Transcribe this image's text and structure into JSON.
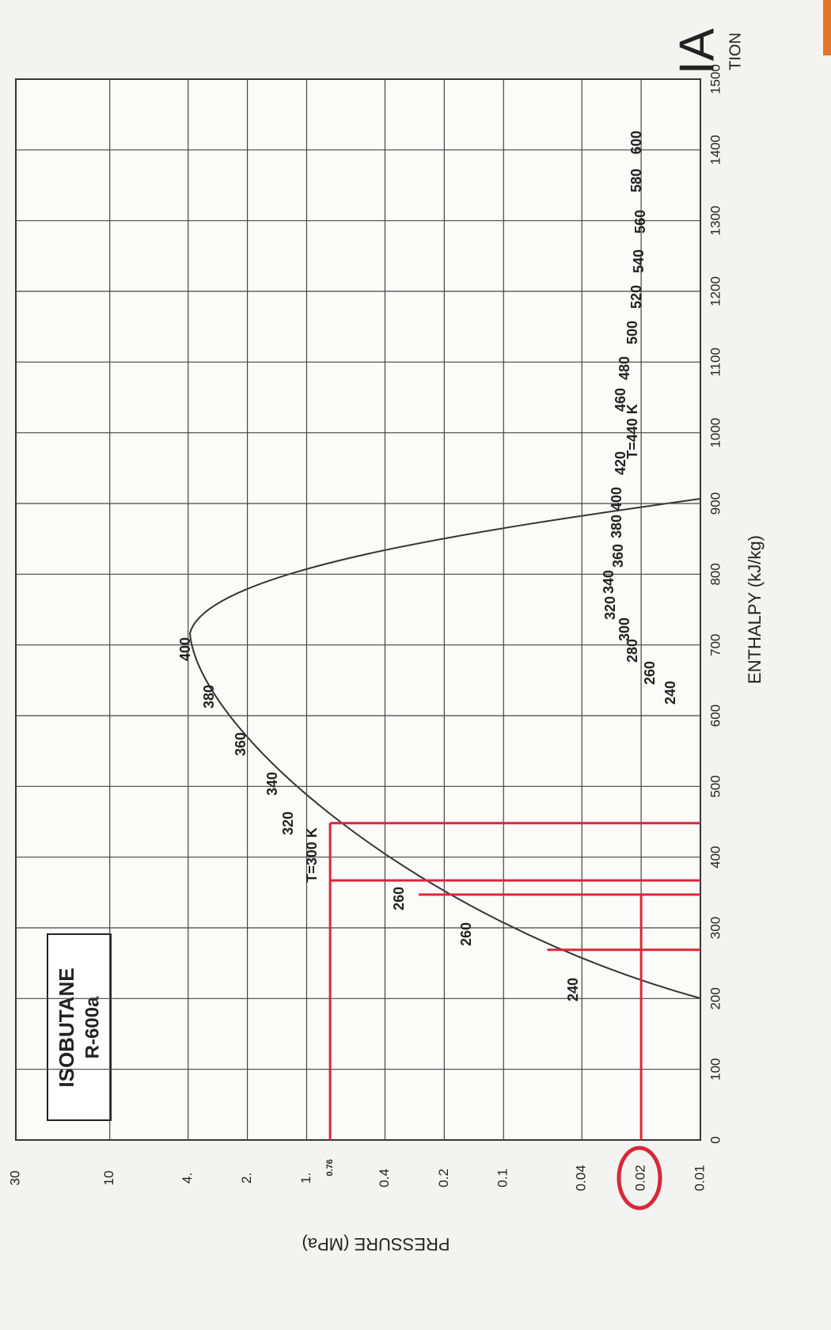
{
  "chart_data": {
    "type": "line",
    "title": "ISOBUTANE",
    "subtitle": "R-600a",
    "x_label": "ENTHALPY (kJ/kg)",
    "y_label": "PRESSURE (MPa)",
    "xlim": [
      0,
      1500
    ],
    "xticks": [
      0,
      100,
      200,
      300,
      400,
      500,
      600,
      700,
      800,
      900,
      1000,
      1100,
      1200,
      1300,
      1400,
      1500
    ],
    "ylim": [
      0.01,
      30
    ],
    "log_y": true,
    "yticks": [
      30,
      10,
      {
        "value": 4,
        "label": "4."
      },
      {
        "value": 2,
        "label": "2."
      },
      {
        "value": 1,
        "label": "1."
      },
      0.4,
      0.2,
      0.1,
      0.04,
      0.02,
      0.01
    ],
    "grid": true,
    "annotated_pressure": 0.76,
    "series": [
      {
        "color": "#d8283a",
        "x": [
          0,
          448
        ],
        "values": [
          0.76,
          0.76
        ]
      },
      {
        "color": "#d8283a",
        "x": [
          448,
          448
        ],
        "values": [
          0.76,
          0.01
        ]
      },
      {
        "color": "#d8283a",
        "x": [
          367,
          367
        ],
        "values": [
          0.76,
          0.01
        ]
      },
      {
        "color": "#d8283a",
        "x": [
          347,
          347
        ],
        "values": [
          0.27,
          0.01
        ]
      },
      {
        "color": "#d8283a",
        "x": [
          269,
          269
        ],
        "values": [
          0.06,
          0.01
        ]
      },
      {
        "color": "#d8283a",
        "x": [
          0,
          347
        ],
        "values": [
          0.02,
          0.02
        ]
      }
    ],
    "isotherm_labels": [
      "240",
      "260",
      "280",
      "300",
      "320",
      "340",
      "360",
      "380",
      "400",
      "420",
      "T=440 K",
      "460",
      "480",
      "500",
      "520",
      "540",
      "560",
      "580",
      "600"
    ],
    "dome_labels": [
      "240",
      "260",
      "260",
      "T=300 K",
      "320",
      "340",
      "360",
      "380",
      "400"
    ],
    "logo": "IA",
    "logo_sub": "TION"
  }
}
